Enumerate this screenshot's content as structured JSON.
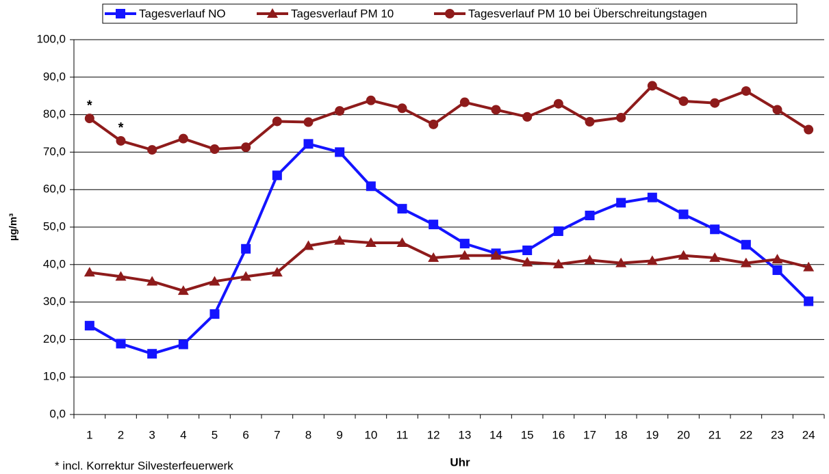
{
  "chart_data": {
    "type": "line",
    "categories": [
      "1",
      "2",
      "3",
      "4",
      "5",
      "6",
      "7",
      "8",
      "9",
      "10",
      "11",
      "12",
      "13",
      "14",
      "15",
      "16",
      "17",
      "18",
      "19",
      "20",
      "21",
      "22",
      "23",
      "24"
    ],
    "series": [
      {
        "name": "Tagesverlauf NO",
        "color": "#1414ff",
        "marker": "square",
        "values": [
          23.7,
          18.9,
          16.2,
          18.7,
          26.8,
          44.2,
          63.8,
          72.2,
          70.0,
          60.9,
          54.9,
          50.7,
          45.6,
          43.0,
          43.8,
          48.9,
          53.1,
          56.5,
          57.9,
          53.4,
          49.4,
          45.3,
          38.5,
          30.2
        ]
      },
      {
        "name": "Tagesverlauf PM 10",
        "color": "#8e1b1b",
        "marker": "triangle",
        "values": [
          37.9,
          36.8,
          35.5,
          33.0,
          35.5,
          36.8,
          37.9,
          45.0,
          46.4,
          45.8,
          45.8,
          41.8,
          42.4,
          42.4,
          40.6,
          40.1,
          41.2,
          40.4,
          41.0,
          42.4,
          41.8,
          40.4,
          41.4,
          39.3
        ]
      },
      {
        "name": "Tagesverlauf PM 10 bei Überschreitungstagen",
        "color": "#8e1b1b",
        "marker": "circle",
        "values": [
          79.0,
          73.0,
          70.6,
          73.6,
          70.8,
          71.3,
          78.2,
          78.0,
          81.0,
          83.8,
          81.7,
          77.4,
          83.3,
          81.3,
          79.4,
          82.9,
          78.1,
          79.2,
          87.7,
          83.6,
          83.1,
          86.3,
          81.3,
          76.0
        ]
      }
    ],
    "xlabel": "Uhr",
    "ylabel": "µg/m³",
    "ylim": [
      0,
      100
    ],
    "yticks": [
      {
        "value": 0,
        "label": "0,0"
      },
      {
        "value": 10,
        "label": "10,0"
      },
      {
        "value": 20,
        "label": "20,0"
      },
      {
        "value": 30,
        "label": "30,0"
      },
      {
        "value": 40,
        "label": "40,0"
      },
      {
        "value": 50,
        "label": "50,0"
      },
      {
        "value": 60,
        "label": "60,0"
      },
      {
        "value": 70,
        "label": "70,0"
      },
      {
        "value": 80,
        "label": "80,0"
      },
      {
        "value": 90,
        "label": "90,0"
      },
      {
        "value": 100,
        "label": "100,0"
      }
    ],
    "grid": true,
    "legend": "top",
    "annotations": [
      "*",
      "*"
    ],
    "note": "* incl. Korrektur Silvesterfeuerwerk"
  }
}
